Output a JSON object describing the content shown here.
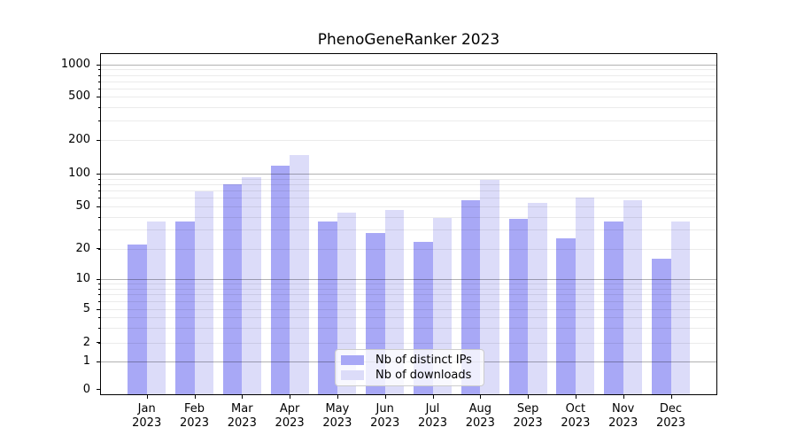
{
  "title": "PhenoGeneRanker 2023",
  "chart_data": {
    "type": "bar",
    "title": "PhenoGeneRanker 2023",
    "categories": [
      "Jan 2023",
      "Feb 2023",
      "Mar 2023",
      "Apr 2023",
      "May 2023",
      "Jun 2023",
      "Jul 2023",
      "Aug 2023",
      "Sep 2023",
      "Oct 2023",
      "Nov 2023",
      "Dec 2023"
    ],
    "series": [
      {
        "name": "Nb of distinct IPs",
        "color": "#a8a8f6",
        "values": [
          22,
          36,
          80,
          117,
          36,
          28,
          23,
          57,
          38,
          25,
          36,
          16
        ]
      },
      {
        "name": "Nb of downloads",
        "color": "#dcdcf9",
        "values": [
          36,
          69,
          92,
          147,
          44,
          46,
          39,
          88,
          54,
          60,
          57,
          36
        ]
      }
    ],
    "xlabel": "",
    "ylabel": "",
    "yscale": "symlog",
    "ylim": [
      0,
      1000
    ],
    "yticks": [
      0,
      1,
      2,
      5,
      10,
      20,
      50,
      100,
      200,
      500,
      1000
    ],
    "grid": true,
    "grid_major_values": [
      1,
      10,
      100,
      1000
    ],
    "legend_position": "lower center"
  }
}
